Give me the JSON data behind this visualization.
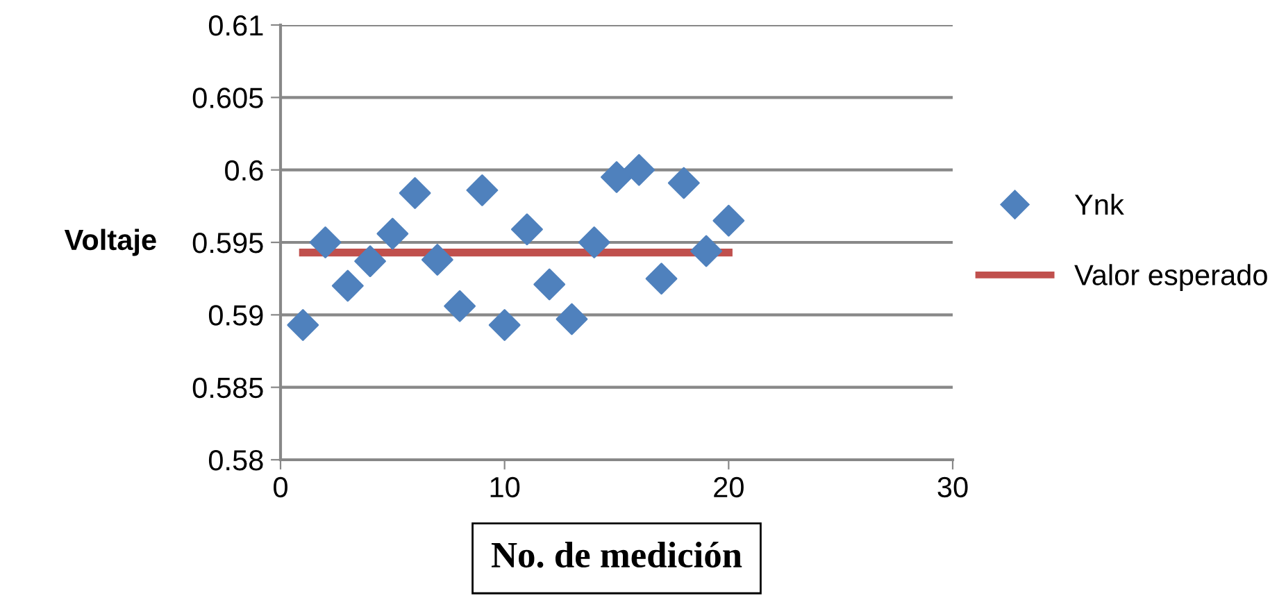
{
  "chart_data": {
    "type": "scatter",
    "xlabel": "No. de medición",
    "ylabel": "Voltaje",
    "series": [
      {
        "name": "Ynk",
        "color": "#4f81bd",
        "marker": "diamond",
        "x": [
          1,
          2,
          3,
          4,
          5,
          6,
          7,
          8,
          9,
          10,
          11,
          12,
          13,
          14,
          15,
          16,
          17,
          18,
          19,
          20
        ],
        "values": [
          0.5893,
          0.595,
          0.592,
          0.5937,
          0.5956,
          0.5984,
          0.5938,
          0.5906,
          0.5986,
          0.5893,
          0.5959,
          0.5921,
          0.5897,
          0.595,
          0.5995,
          0.6,
          0.5925,
          0.5991,
          0.5944,
          0.5965
        ]
      },
      {
        "name": "Valor esperado",
        "type": "line",
        "color": "#c0504d",
        "x": [
          1,
          20
        ],
        "values": [
          0.5943,
          0.5943
        ]
      }
    ],
    "xlim": [
      0,
      30
    ],
    "xticks": [
      0,
      10,
      20,
      30
    ],
    "ylim": [
      0.58,
      0.61
    ],
    "yticks": [
      0.58,
      0.585,
      0.59,
      0.595,
      0.6,
      0.605,
      0.61
    ],
    "grid": "y",
    "legend": "right"
  }
}
